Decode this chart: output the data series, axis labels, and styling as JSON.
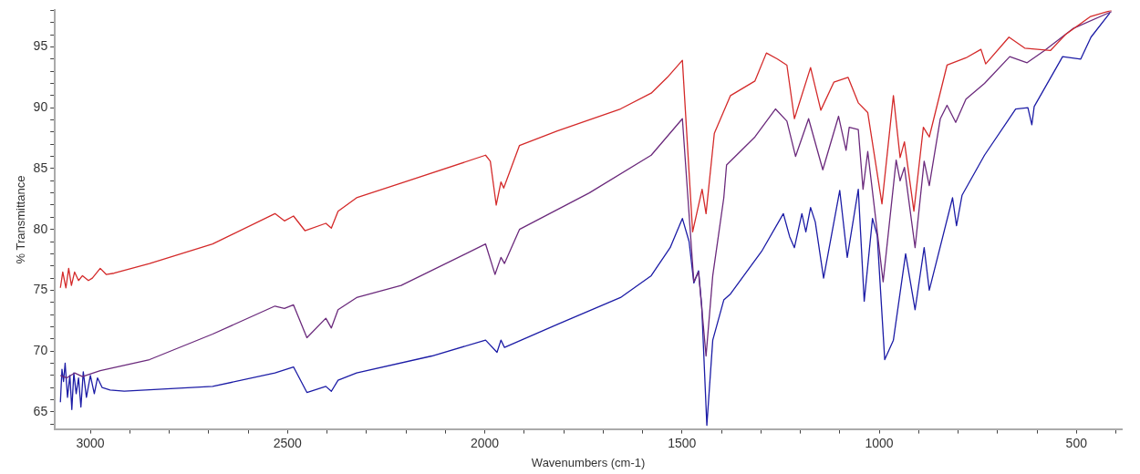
{
  "chart_data": {
    "type": "line",
    "xlabel": "Wavenumbers (cm-1)",
    "ylabel": "% Transmittance",
    "xlim": [
      3090,
      385
    ],
    "ylim": [
      63.6,
      98
    ],
    "xticks": [
      {
        "value": 400,
        "label": null
      },
      500,
      {
        "value": 600,
        "label": null
      },
      {
        "value": 700,
        "label": null
      },
      {
        "value": 800,
        "label": null
      },
      {
        "value": 900,
        "label": null
      },
      1000,
      {
        "value": 1100,
        "label": null
      },
      {
        "value": 1200,
        "label": null
      },
      {
        "value": 1300,
        "label": null
      },
      {
        "value": 1400,
        "label": null
      },
      1500,
      {
        "value": 1600,
        "label": null
      },
      {
        "value": 1700,
        "label": null
      },
      {
        "value": 1800,
        "label": null
      },
      {
        "value": 1900,
        "label": null
      },
      2000,
      {
        "value": 2100,
        "label": null
      },
      {
        "value": 2200,
        "label": null
      },
      {
        "value": 2300,
        "label": null
      },
      {
        "value": 2400,
        "label": null
      },
      2500,
      {
        "value": 2600,
        "label": null
      },
      {
        "value": 2700,
        "label": null
      },
      {
        "value": 2800,
        "label": null
      },
      {
        "value": 2900,
        "label": null
      },
      3000
    ],
    "yticks": [
      {
        "value": 64,
        "label": null
      },
      65,
      {
        "value": 66,
        "label": null
      },
      {
        "value": 67,
        "label": null
      },
      {
        "value": 68,
        "label": null
      },
      {
        "value": 69,
        "label": null
      },
      70,
      {
        "value": 71,
        "label": null
      },
      {
        "value": 72,
        "label": null
      },
      {
        "value": 73,
        "label": null
      },
      {
        "value": 74,
        "label": null
      },
      75,
      {
        "value": 76,
        "label": null
      },
      {
        "value": 77,
        "label": null
      },
      {
        "value": 78,
        "label": null
      },
      {
        "value": 79,
        "label": null
      },
      80,
      {
        "value": 81,
        "label": null
      },
      {
        "value": 82,
        "label": null
      },
      {
        "value": 83,
        "label": null
      },
      {
        "value": 84,
        "label": null
      },
      85,
      {
        "value": 86,
        "label": null
      },
      {
        "value": 87,
        "label": null
      },
      {
        "value": 88,
        "label": null
      },
      {
        "value": 89,
        "label": null
      },
      90,
      {
        "value": 91,
        "label": null
      },
      {
        "value": 92,
        "label": null
      },
      {
        "value": 93,
        "label": null
      },
      {
        "value": 94,
        "label": null
      },
      95,
      {
        "value": 96,
        "label": null
      },
      {
        "value": 97,
        "label": null
      },
      {
        "value": 98,
        "label": null
      }
    ],
    "grid": false,
    "legend": false,
    "marker": "none",
    "line_style": "solid",
    "series": [
      {
        "color": "#d42a2a",
        "x": [
          3076,
          3070,
          3062,
          3055,
          3048,
          3040,
          3030,
          3020,
          3005,
          2995,
          2975,
          2960,
          2940,
          2850,
          2690,
          2532,
          2508,
          2485,
          2456,
          2403,
          2389,
          2372,
          2325,
          2212,
          1998,
          1986,
          1971,
          1959,
          1952,
          1912,
          1816,
          1656,
          1578,
          1537,
          1499,
          1473,
          1449,
          1439,
          1418,
          1377,
          1315,
          1286,
          1258,
          1234,
          1215,
          1174,
          1148,
          1115,
          1079,
          1053,
          1029,
          993,
          964,
          947,
          936,
          912,
          888,
          873,
          828,
          780,
          742,
          730,
          671,
          631,
          566,
          528,
          464,
          411
        ],
        "values": [
          75.2,
          76.5,
          75.2,
          76.8,
          75.4,
          76.5,
          75.8,
          76.2,
          75.8,
          76.0,
          76.8,
          76.3,
          76.4,
          77.2,
          78.8,
          81.3,
          80.7,
          81.1,
          79.9,
          80.5,
          80.1,
          81.5,
          82.6,
          83.8,
          86.1,
          85.6,
          82.0,
          83.9,
          83.4,
          86.9,
          88.1,
          89.9,
          91.2,
          92.5,
          93.9,
          79.8,
          83.3,
          81.3,
          87.9,
          91.0,
          92.2,
          94.5,
          94.0,
          93.5,
          89.1,
          93.3,
          89.8,
          92.1,
          92.5,
          90.4,
          89.6,
          82.1,
          91.0,
          85.9,
          87.2,
          81.5,
          88.4,
          87.6,
          93.5,
          94.1,
          94.8,
          93.6,
          95.8,
          94.9,
          94.7,
          96.0,
          97.5,
          98.0
        ]
      },
      {
        "color": "#6b2a7c",
        "x": [
          3076,
          3060,
          3040,
          3020,
          2975,
          2850,
          2690,
          2532,
          2508,
          2485,
          2451,
          2403,
          2389,
          2372,
          2325,
          2212,
          1998,
          1974,
          1959,
          1950,
          1912,
          1735,
          1578,
          1499,
          1470,
          1458,
          1439,
          1422,
          1394,
          1387,
          1315,
          1263,
          1234,
          1212,
          1179,
          1143,
          1103,
          1084,
          1076,
          1053,
          1041,
          1029,
          990,
          957,
          947,
          936,
          909,
          886,
          873,
          845,
          828,
          806,
          780,
          733,
          669,
          625,
          581,
          509,
          411
        ],
        "values": [
          68.0,
          67.8,
          68.2,
          67.9,
          68.4,
          69.3,
          71.4,
          73.7,
          73.5,
          73.8,
          71.1,
          72.7,
          71.9,
          73.4,
          74.4,
          75.4,
          78.8,
          76.3,
          77.7,
          77.2,
          80.0,
          83.0,
          86.1,
          89.1,
          75.7,
          76.5,
          69.6,
          76.2,
          82.6,
          85.3,
          87.6,
          89.9,
          88.9,
          86.0,
          89.1,
          84.9,
          89.3,
          86.5,
          88.4,
          88.2,
          83.3,
          86.4,
          75.7,
          85.7,
          84.0,
          85.1,
          78.5,
          85.6,
          83.6,
          89.1,
          90.2,
          88.8,
          90.7,
          92.0,
          94.2,
          93.7,
          94.7,
          96.5,
          97.9
        ]
      },
      {
        "color": "#1c1ca6",
        "x": [
          3076,
          3072,
          3068,
          3064,
          3058,
          3052,
          3047,
          3042,
          3036,
          3030,
          3024,
          3018,
          3010,
          3000,
          2990,
          2982,
          2970,
          2950,
          2914,
          2690,
          2532,
          2485,
          2451,
          2403,
          2389,
          2372,
          2325,
          2134,
          1998,
          1969,
          1959,
          1950,
          1816,
          1656,
          1578,
          1530,
          1499,
          1482,
          1470,
          1458,
          1450,
          1437,
          1422,
          1394,
          1377,
          1298,
          1243,
          1227,
          1215,
          1196,
          1186,
          1174,
          1162,
          1141,
          1100,
          1081,
          1053,
          1038,
          1017,
          1005,
          986,
          964,
          933,
          909,
          886,
          873,
          814,
          804,
          790,
          733,
          654,
          623,
          613,
          607,
          535,
          489,
          463,
          415
        ],
        "values": [
          65.8,
          68.5,
          67.5,
          69.0,
          66.2,
          68.0,
          65.2,
          68.2,
          66.5,
          67.8,
          65.4,
          68.3,
          66.2,
          68.0,
          66.5,
          67.8,
          67.0,
          66.8,
          66.7,
          67.1,
          68.2,
          68.7,
          66.6,
          67.1,
          66.7,
          67.6,
          68.2,
          69.6,
          70.9,
          69.9,
          70.9,
          70.3,
          72.2,
          74.4,
          76.2,
          78.5,
          80.9,
          79.0,
          75.6,
          76.6,
          73.7,
          63.9,
          70.9,
          74.2,
          74.7,
          78.2,
          81.3,
          79.4,
          78.5,
          81.3,
          79.8,
          81.8,
          80.6,
          76.0,
          83.2,
          77.7,
          83.3,
          74.1,
          80.9,
          79.5,
          69.3,
          70.9,
          78.0,
          73.4,
          78.5,
          75.0,
          82.6,
          80.3,
          82.8,
          86.1,
          89.9,
          90.0,
          88.6,
          90.1,
          94.2,
          94.0,
          95.8,
          97.8
        ]
      }
    ]
  }
}
